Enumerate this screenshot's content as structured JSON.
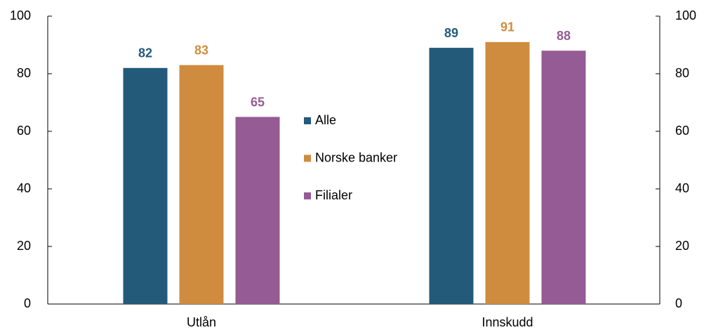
{
  "chart_data": {
    "type": "bar",
    "categories": [
      "Utlån",
      "Innskudd"
    ],
    "series": [
      {
        "name": "Alle",
        "color": "#235a7a",
        "values": [
          82,
          89
        ]
      },
      {
        "name": "Norske banker",
        "color": "#d08c3e",
        "values": [
          83,
          91
        ]
      },
      {
        "name": "Filialer",
        "color": "#955b94",
        "values": [
          65,
          88
        ]
      }
    ],
    "ylim": [
      0,
      100
    ],
    "yticks": [
      0,
      20,
      40,
      60,
      80,
      100
    ],
    "y2lim": [
      0,
      100
    ],
    "y2ticks": [
      0,
      20,
      40,
      60,
      80,
      100
    ],
    "grid": false
  }
}
